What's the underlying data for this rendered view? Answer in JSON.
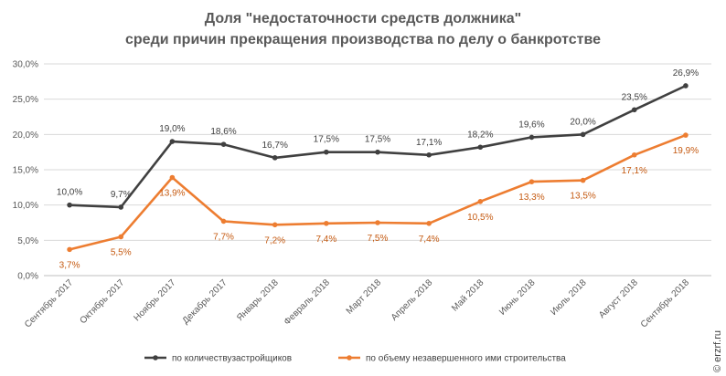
{
  "chart_data": {
    "type": "line",
    "title_lines": [
      "Доля \"недостаточности средств должника\"",
      "среди причин прекращения производства по делу о банкротстве"
    ],
    "categories": [
      "Сентябрь 2017",
      "Октябрь 2017",
      "Ноябрь 2017",
      "Декабрь 2017",
      "Январь 2018",
      "Февраль 2018",
      "Март 2018",
      "Апрель 2018",
      "Май 2018",
      "Июнь 2018",
      "Июль 2018",
      "Август 2018",
      "Сентябрь 2018"
    ],
    "y_ticks": [
      "0,0%",
      "5,0%",
      "10,0%",
      "15,0%",
      "20,0%",
      "25,0%",
      "30,0%"
    ],
    "ylim": [
      0,
      30
    ],
    "grid": true,
    "legend_position": "bottom",
    "series": [
      {
        "name": "по количествузастройщиков",
        "color": "#404040",
        "values": [
          10.0,
          9.7,
          19.0,
          18.6,
          16.7,
          17.5,
          17.5,
          17.1,
          18.2,
          19.6,
          20.0,
          23.5,
          26.9
        ],
        "labels": [
          "10,0%",
          "9,7%",
          "19,0%",
          "18,6%",
          "16,7%",
          "17,5%",
          "17,5%",
          "17,1%",
          "18,2%",
          "19,6%",
          "20,0%",
          "23,5%",
          "26,9%"
        ]
      },
      {
        "name": "по объему незавершенного ими строительства",
        "color": "#ED7D31",
        "values": [
          3.7,
          5.5,
          13.9,
          7.7,
          7.2,
          7.4,
          7.5,
          7.4,
          10.5,
          13.3,
          13.5,
          17.1,
          19.9
        ],
        "labels": [
          "3,7%",
          "5,5%",
          "13,9%",
          "7,7%",
          "7,2%",
          "7,4%",
          "7,5%",
          "7,4%",
          "10,5%",
          "13,3%",
          "13,5%",
          "17,1%",
          "19,9%"
        ]
      }
    ]
  },
  "watermark": "© erzrf.ru"
}
